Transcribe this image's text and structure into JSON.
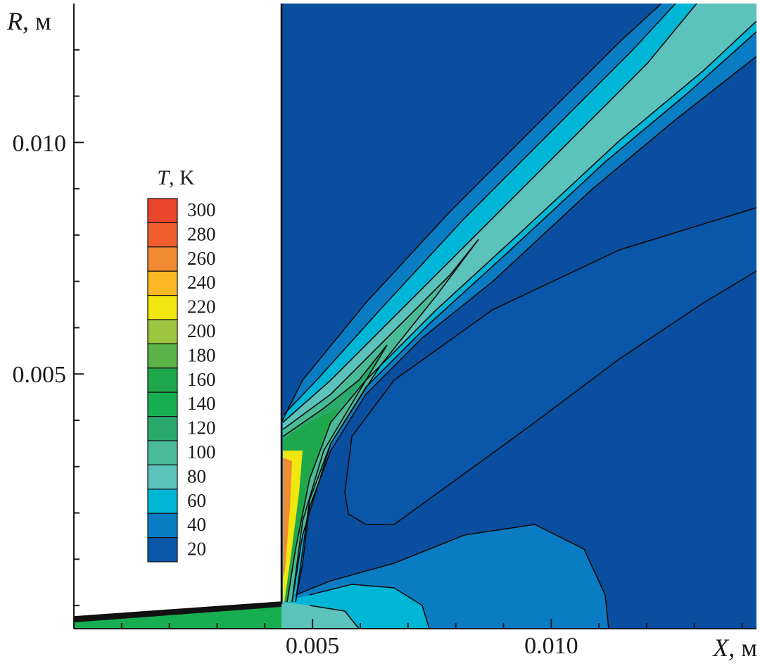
{
  "chart_data": {
    "type": "heatmap",
    "subtype": "filled-contour",
    "title": "",
    "xlabel": {
      "symbol": "X",
      "unit": ", м"
    },
    "ylabel": {
      "symbol": "R",
      "unit": ", м"
    },
    "x_ticks": [
      "0.005",
      "0.010"
    ],
    "y_ticks": [
      "0.005",
      "0.010"
    ],
    "x_tick_values": [
      0.005,
      0.01
    ],
    "y_tick_values": [
      0.005,
      0.01
    ],
    "xlim": [
      0.0,
      0.0143
    ],
    "ylim": [
      -0.0005,
      0.013
    ],
    "legend": {
      "title_symbol": "T",
      "title_unit": ", K",
      "position": "left",
      "levels": [
        300,
        280,
        260,
        240,
        220,
        200,
        180,
        160,
        140,
        120,
        100,
        80,
        60,
        40,
        20
      ],
      "colors": [
        "#e8452a",
        "#ef5d2c",
        "#f08a33",
        "#fbb824",
        "#f0e610",
        "#9cc63f",
        "#5bb447",
        "#1ea84b",
        "#17ae52",
        "#2aa96c",
        "#4abb98",
        "#5bc2bc",
        "#00b6d6",
        "#0a7cc4",
        "#0a56a8"
      ]
    },
    "background_color": "#0a4e9f",
    "regions": [
      {
        "level_band": "20-40",
        "description_color": "#0a56a8"
      },
      {
        "level_band": "40-60",
        "description_color": "#0a7cc4"
      },
      {
        "level_band": "60-80",
        "description_color": "#00b6d6"
      },
      {
        "level_band": "80-100",
        "description_color": "#5bc2bc"
      },
      {
        "level_band": "100-120",
        "description_color": "#4abb98"
      },
      {
        "level_band": "240-260",
        "description_color": "#fbb824"
      }
    ],
    "grid": false
  }
}
